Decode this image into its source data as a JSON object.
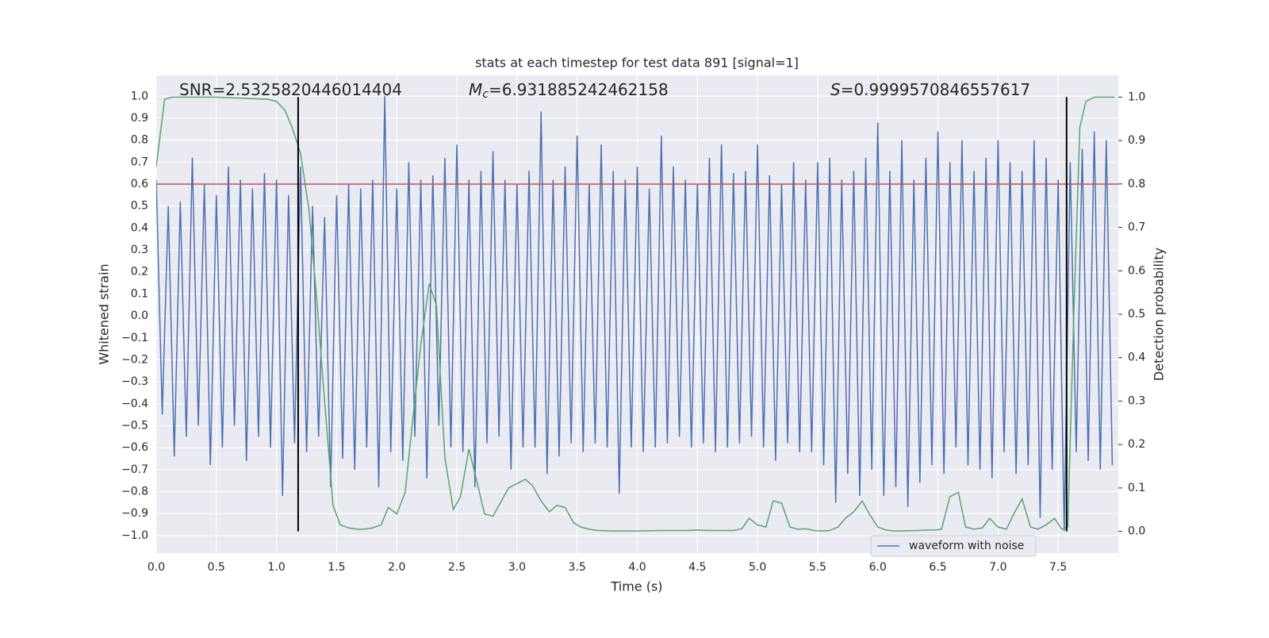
{
  "chart_data": {
    "type": "line",
    "title": "stats at each timestep for test data 891 [signal=1]",
    "xlabel": "Time (s)",
    "ylabel": "Whitened strain",
    "y2label": "Detection probability",
    "annotations": [
      {
        "text": "SNR=2.5325820446014404"
      },
      {
        "symbol": "M",
        "subscript": "c",
        "text": "=6.931885242462158"
      },
      {
        "symbol": "S",
        "text": "=0.9999570846557617"
      }
    ],
    "xlim": [
      0,
      8
    ],
    "xticks": [
      {
        "value": 0,
        "label": "0.0"
      },
      0.5,
      {
        "value": 1,
        "label": "1.0"
      },
      1.5,
      {
        "value": 2,
        "label": "2.0"
      },
      2.5,
      {
        "value": 3,
        "label": "3.0"
      },
      3.5,
      {
        "value": 4,
        "label": "4.0"
      },
      4.5,
      {
        "value": 5,
        "label": "5.0"
      },
      5.5,
      {
        "value": 6,
        "label": "6.0"
      },
      6.5,
      {
        "value": 7,
        "label": "7.0"
      },
      7.5
    ],
    "ylim": [
      -1.08,
      1.095
    ],
    "yticks": [
      {
        "value": -1,
        "label": "−1.0"
      },
      {
        "value": -0.9,
        "label": "−0.9"
      },
      {
        "value": -0.8,
        "label": "−0.8"
      },
      {
        "value": -0.7,
        "label": "−0.7"
      },
      {
        "value": -0.6,
        "label": "−0.6"
      },
      {
        "value": -0.5,
        "label": "−0.5"
      },
      {
        "value": -0.4,
        "label": "−0.4"
      },
      {
        "value": -0.3,
        "label": "−0.3"
      },
      {
        "value": -0.2,
        "label": "−0.2"
      },
      {
        "value": -0.1,
        "label": "−0.1"
      },
      {
        "value": 0,
        "label": "0.0"
      },
      0.1,
      0.2,
      0.3,
      0.4,
      0.5,
      0.6,
      0.7,
      0.8,
      0.9,
      {
        "value": 1,
        "label": "1.0"
      }
    ],
    "y2lim": [
      -0.05,
      1.05
    ],
    "y2ticks": [
      {
        "value": 0,
        "label": "0.0"
      },
      0.1,
      0.2,
      0.3,
      0.4,
      0.5,
      0.6,
      0.7,
      0.8,
      0.9,
      {
        "value": 1,
        "label": "1.0"
      }
    ],
    "grid": true,
    "background": "#eaeaf2",
    "legend": "lower right",
    "series": [
      {
        "name": "waveform with noise",
        "color": "#4c72b0",
        "axis": "y",
        "x": [
          0,
          0.05,
          0.1,
          0.15,
          0.2,
          0.25,
          0.3,
          0.35,
          0.4,
          0.45,
          0.5,
          0.55,
          0.6,
          0.65,
          0.7,
          0.75,
          0.8,
          0.85,
          0.9,
          0.95,
          1,
          1.05,
          1.1,
          1.15,
          1.2,
          1.25,
          1.3,
          1.35,
          1.4,
          1.45,
          1.5,
          1.55,
          1.6,
          1.65,
          1.7,
          1.75,
          1.8,
          1.85,
          1.9,
          1.95,
          2,
          2.05,
          2.1,
          2.15,
          2.2,
          2.25,
          2.3,
          2.35,
          2.4,
          2.45,
          2.5,
          2.55,
          2.6,
          2.65,
          2.7,
          2.75,
          2.8,
          2.85,
          2.9,
          2.95,
          3,
          3.05,
          3.1,
          3.15,
          3.2,
          3.25,
          3.3,
          3.35,
          3.4,
          3.45,
          3.5,
          3.55,
          3.6,
          3.65,
          3.7,
          3.75,
          3.8,
          3.85,
          3.9,
          3.95,
          4,
          4.05,
          4.1,
          4.15,
          4.2,
          4.25,
          4.3,
          4.35,
          4.4,
          4.45,
          4.5,
          4.55,
          4.6,
          4.65,
          4.7,
          4.75,
          4.8,
          4.85,
          4.9,
          4.95,
          5,
          5.05,
          5.1,
          5.15,
          5.2,
          5.25,
          5.3,
          5.35,
          5.4,
          5.45,
          5.5,
          5.55,
          5.6,
          5.65,
          5.7,
          5.75,
          5.8,
          5.85,
          5.9,
          5.95,
          6,
          6.05,
          6.1,
          6.15,
          6.2,
          6.25,
          6.3,
          6.35,
          6.4,
          6.45,
          6.5,
          6.55,
          6.6,
          6.65,
          6.7,
          6.75,
          6.8,
          6.85,
          6.9,
          6.95,
          7,
          7.05,
          7.1,
          7.15,
          7.2,
          7.25,
          7.3,
          7.35,
          7.4,
          7.45,
          7.5,
          7.55,
          7.6,
          7.65,
          7.7,
          7.75,
          7.8,
          7.85,
          7.9,
          7.95
        ],
        "values": [
          0.62,
          -0.45,
          0.5,
          -0.64,
          0.52,
          -0.55,
          0.72,
          -0.5,
          0.6,
          -0.68,
          0.55,
          -0.6,
          0.68,
          -0.5,
          0.62,
          -0.66,
          0.58,
          -0.55,
          0.65,
          -0.6,
          0.62,
          -0.82,
          0.55,
          -0.58,
          0.68,
          -0.62,
          0.5,
          -0.55,
          0.45,
          -0.78,
          0.55,
          -0.65,
          0.6,
          -0.7,
          0.58,
          -0.6,
          0.62,
          -0.78,
          1.0,
          -0.62,
          0.58,
          -0.66,
          0.7,
          -0.55,
          0.62,
          -0.74,
          0.64,
          -0.5,
          0.72,
          -0.6,
          0.78,
          -0.62,
          0.62,
          -0.78,
          0.66,
          -0.58,
          0.75,
          -0.55,
          0.62,
          -0.7,
          0.6,
          -0.6,
          0.66,
          -0.6,
          0.93,
          -0.72,
          0.62,
          -0.64,
          0.68,
          -0.58,
          0.82,
          -0.62,
          0.6,
          -0.58,
          0.78,
          -0.6,
          0.66,
          -0.81,
          0.62,
          -0.6,
          0.68,
          -0.62,
          0.58,
          -0.6,
          0.82,
          -0.58,
          0.68,
          -0.55,
          0.62,
          -0.6,
          0.6,
          -0.58,
          0.72,
          -0.62,
          0.78,
          -0.6,
          0.65,
          -0.58,
          0.66,
          -0.55,
          0.78,
          -0.6,
          0.64,
          -0.66,
          0.6,
          -0.58,
          0.7,
          -0.62,
          0.62,
          -0.62,
          0.7,
          -0.68,
          0.72,
          -0.85,
          0.62,
          -0.72,
          0.66,
          -0.82,
          0.72,
          -0.7,
          0.88,
          -0.82,
          0.66,
          -0.78,
          0.8,
          -0.87,
          0.62,
          -0.76,
          0.72,
          -0.68,
          0.84,
          -0.72,
          0.7,
          -0.6,
          0.8,
          -0.68,
          0.66,
          -0.7,
          0.72,
          -0.74,
          0.8,
          -0.62,
          0.7,
          -0.72,
          0.66,
          -0.68,
          0.8,
          -0.92,
          0.72,
          -0.7,
          0.62,
          -0.98,
          0.7,
          -0.62,
          0.76,
          -0.66,
          0.84,
          -0.7,
          0.8,
          -0.68
        ]
      },
      {
        "color": "#55a868",
        "axis": "y2",
        "x": [
          0,
          0.07,
          0.13,
          0.5,
          0.93,
          1,
          1.07,
          1.13,
          1.2,
          1.27,
          1.33,
          1.4,
          1.47,
          1.53,
          1.6,
          1.67,
          1.73,
          1.8,
          1.87,
          1.93,
          2,
          2.07,
          2.13,
          2.2,
          2.27,
          2.33,
          2.4,
          2.47,
          2.53,
          2.6,
          2.67,
          2.73,
          2.8,
          2.87,
          2.93,
          3,
          3.07,
          3.13,
          3.2,
          3.27,
          3.33,
          3.4,
          3.47,
          3.53,
          3.6,
          3.67,
          3.8,
          4,
          4.2,
          4.4,
          4.5,
          4.6,
          4.8,
          4.87,
          4.93,
          5,
          5.07,
          5.13,
          5.2,
          5.27,
          5.33,
          5.4,
          5.47,
          5.53,
          5.6,
          5.67,
          5.73,
          5.8,
          5.87,
          5.93,
          6,
          6.07,
          6.13,
          6.2,
          6.33,
          6.4,
          6.47,
          6.53,
          6.6,
          6.67,
          6.73,
          6.8,
          6.87,
          6.93,
          7,
          7.07,
          7.13,
          7.2,
          7.27,
          7.33,
          7.4,
          7.47,
          7.53,
          7.58,
          7.63,
          7.68,
          7.73,
          7.8,
          7.97
        ],
        "values": [
          0.84,
          0.995,
          1.0,
          1.0,
          0.995,
          0.99,
          0.97,
          0.93,
          0.87,
          0.74,
          0.55,
          0.3,
          0.06,
          0.015,
          0.008,
          0.005,
          0.005,
          0.008,
          0.015,
          0.055,
          0.04,
          0.09,
          0.25,
          0.43,
          0.57,
          0.52,
          0.17,
          0.05,
          0.08,
          0.19,
          0.11,
          0.04,
          0.035,
          0.07,
          0.1,
          0.11,
          0.12,
          0.105,
          0.07,
          0.045,
          0.06,
          0.055,
          0.02,
          0.01,
          0.005,
          0.002,
          0.001,
          0.001,
          0.002,
          0.002,
          0.003,
          0.002,
          0.002,
          0.006,
          0.03,
          0.015,
          0.01,
          0.07,
          0.065,
          0.01,
          0.005,
          0.006,
          0.002,
          0.001,
          0.002,
          0.01,
          0.03,
          0.045,
          0.07,
          0.04,
          0.01,
          0.003,
          0.001,
          0.001,
          0.002,
          0.003,
          0.003,
          0.005,
          0.08,
          0.09,
          0.01,
          0.005,
          0.008,
          0.03,
          0.01,
          0.005,
          0.04,
          0.075,
          0.01,
          0.005,
          0.015,
          0.03,
          0.005,
          0.01,
          0.5,
          0.93,
          0.99,
          1.0,
          1.0
        ]
      }
    ],
    "hlines": [
      {
        "value": 0.6,
        "axis": "y",
        "color": "#c44e52"
      }
    ],
    "vlines": {
      "x": [
        1.18,
        7.57
      ],
      "range": [
        0,
        1
      ],
      "axis": "y2",
      "color": "#000000"
    }
  }
}
